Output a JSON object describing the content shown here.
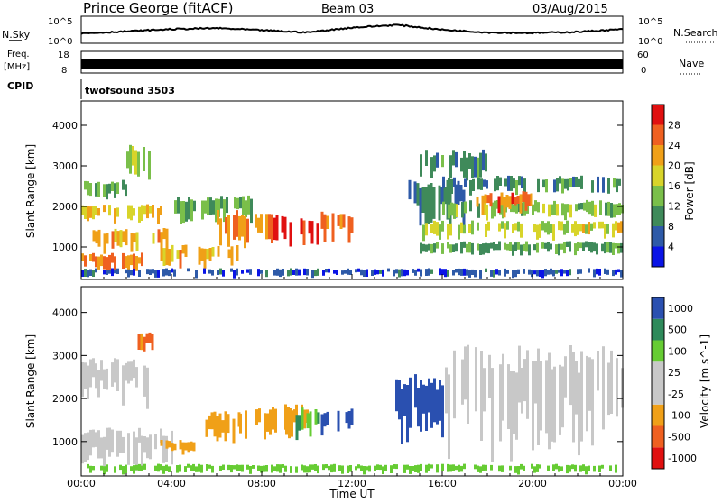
{
  "header": {
    "station": "Prince George (fitACF)",
    "beam": "Beam 03",
    "date": "03/Aug/2015"
  },
  "panels": {
    "nsky": {
      "label": "N.Sky",
      "tick_top": "10^5",
      "tick_bottom": "10^0"
    },
    "nsearch": {
      "label": "N.Search",
      "tick_top": "10^5",
      "tick_bottom": "10^0"
    },
    "freq": {
      "label_line1": "Freq.",
      "label_line2": "[MHz]",
      "tick_top": "18",
      "tick_bottom": "8"
    },
    "nave": {
      "label": "Nave",
      "tick_top": "60",
      "tick_bottom": "0"
    },
    "cpid": {
      "label": "CPID",
      "value": "twofsound 3503"
    }
  },
  "colors": {
    "power": [
      "#0a14e6",
      "#2e5aa8",
      "#3f8a5a",
      "#7abf4a",
      "#d8d42a",
      "#f0a018",
      "#ef6020",
      "#e01010"
    ],
    "velocity": [
      "#e01010",
      "#ef6020",
      "#f0a018",
      "#c8c8c8",
      "#c8c8c8",
      "#66cc33",
      "#2e8a5a",
      "#2a50b0"
    ],
    "velocity_nodata_gray": "#c8c8c8"
  },
  "chart_data": [
    {
      "type": "heatmap",
      "name": "power",
      "ylabel": "Slant Range [km]",
      "x_ticks": [
        "00:00",
        "04:00",
        "08:00",
        "12:00",
        "16:00",
        "20:00",
        "00:00"
      ],
      "y_ticks": [
        1000,
        2000,
        3000,
        4000
      ],
      "ylim": [
        200,
        4600
      ],
      "colorbar": {
        "label": "Power [dB]",
        "ticks": [
          "4",
          "8",
          "12",
          "16",
          "20",
          "24",
          "28"
        ],
        "range": [
          0,
          30
        ]
      },
      "regions": [
        {
          "t0": 0.0,
          "t1": 2.0,
          "r0": 2200,
          "r1": 2600,
          "value": 12
        },
        {
          "t0": 0.0,
          "t1": 3.5,
          "r0": 1600,
          "r1": 2000,
          "value": 18
        },
        {
          "t0": 0.5,
          "t1": 4.0,
          "r0": 900,
          "r1": 1400,
          "value": 20
        },
        {
          "t0": 0.0,
          "t1": 3.0,
          "r0": 400,
          "r1": 800,
          "value": 22
        },
        {
          "t0": 2.0,
          "t1": 3.0,
          "r0": 2600,
          "r1": 3400,
          "value": 14
        },
        {
          "t0": 3.5,
          "t1": 7.0,
          "r0": 500,
          "r1": 1000,
          "value": 20
        },
        {
          "t0": 4.0,
          "t1": 7.5,
          "r0": 1600,
          "r1": 2200,
          "value": 12
        },
        {
          "t0": 6.0,
          "t1": 8.5,
          "r0": 1000,
          "r1": 1800,
          "value": 22
        },
        {
          "t0": 8.5,
          "t1": 10.5,
          "r0": 1000,
          "r1": 1700,
          "value": 29
        },
        {
          "t0": 10.5,
          "t1": 12.0,
          "r0": 1100,
          "r1": 1800,
          "value": 24
        },
        {
          "t0": 14.5,
          "t1": 17.0,
          "r0": 1500,
          "r1": 2500,
          "value": 8
        },
        {
          "t0": 15.0,
          "t1": 18.0,
          "r0": 2600,
          "r1": 3300,
          "value": 10
        },
        {
          "t0": 16.0,
          "t1": 24.0,
          "r0": 2300,
          "r1": 2700,
          "value": 9
        },
        {
          "t0": 16.0,
          "t1": 24.0,
          "r0": 1700,
          "r1": 2100,
          "value": 13
        },
        {
          "t0": 17.5,
          "t1": 20.0,
          "r0": 1800,
          "r1": 2300,
          "value": 24
        },
        {
          "t0": 15.0,
          "t1": 24.0,
          "r0": 1200,
          "r1": 1600,
          "value": 16
        },
        {
          "t0": 15.0,
          "t1": 24.0,
          "r0": 800,
          "r1": 1100,
          "value": 11
        },
        {
          "t0": 0.0,
          "t1": 24.0,
          "r0": 250,
          "r1": 450,
          "value": 5
        }
      ]
    },
    {
      "type": "heatmap",
      "name": "velocity",
      "ylabel": "Slant Range [km]",
      "xlabel": "Time UT",
      "x_ticks": [
        "00:00",
        "04:00",
        "08:00",
        "12:00",
        "16:00",
        "20:00",
        "00:00"
      ],
      "y_ticks": [
        1000,
        2000,
        3000,
        4000
      ],
      "ylim": [
        200,
        4600
      ],
      "colorbar": {
        "label": "Velocity [m s^-1]",
        "ticks": [
          "-1000",
          "-500",
          "-100",
          "-25",
          "25",
          "100",
          "500",
          "1000"
        ]
      },
      "regions": [
        {
          "t0": 0.0,
          "t1": 3.0,
          "r0": 1800,
          "r1": 2800,
          "value": 0
        },
        {
          "t0": 0.0,
          "t1": 4.0,
          "r0": 400,
          "r1": 1200,
          "value": 0
        },
        {
          "t0": 2.5,
          "t1": 3.2,
          "r0": 3000,
          "r1": 3500,
          "value": -600
        },
        {
          "t0": 3.5,
          "t1": 5.0,
          "r0": 700,
          "r1": 1000,
          "value": -300
        },
        {
          "t0": 5.5,
          "t1": 7.0,
          "r0": 900,
          "r1": 1600,
          "value": -200
        },
        {
          "t0": 7.0,
          "t1": 9.5,
          "r0": 1000,
          "r1": 1700,
          "value": -400
        },
        {
          "t0": 9.0,
          "t1": 10.0,
          "r0": 1200,
          "r1": 1800,
          "value": -200
        },
        {
          "t0": 9.5,
          "t1": 10.5,
          "r0": 1100,
          "r1": 1700,
          "value": 100
        },
        {
          "t0": 10.5,
          "t1": 12.0,
          "r0": 1200,
          "r1": 1700,
          "value": 600
        },
        {
          "t0": 13.8,
          "t1": 16.0,
          "r0": 1000,
          "r1": 2400,
          "value": 700
        },
        {
          "t0": 16.0,
          "t1": 24.0,
          "r0": 600,
          "r1": 2900,
          "value": 0
        },
        {
          "t0": 0.0,
          "t1": 24.0,
          "r0": 250,
          "r1": 450,
          "value": 60
        }
      ]
    },
    {
      "type": "line",
      "name": "nsky",
      "x_hours": [
        0,
        2,
        4,
        6,
        8,
        10,
        12,
        14,
        16,
        18,
        20,
        22,
        24
      ],
      "values": [
        1.8,
        2.2,
        2.6,
        2.8,
        2.4,
        2.0,
        2.9,
        3.4,
        2.5,
        2.0,
        1.9,
        2.1,
        2.6
      ]
    },
    {
      "type": "line",
      "name": "freq",
      "x_hours": [
        0,
        24
      ],
      "values": [
        10.5,
        10.5
      ]
    }
  ]
}
